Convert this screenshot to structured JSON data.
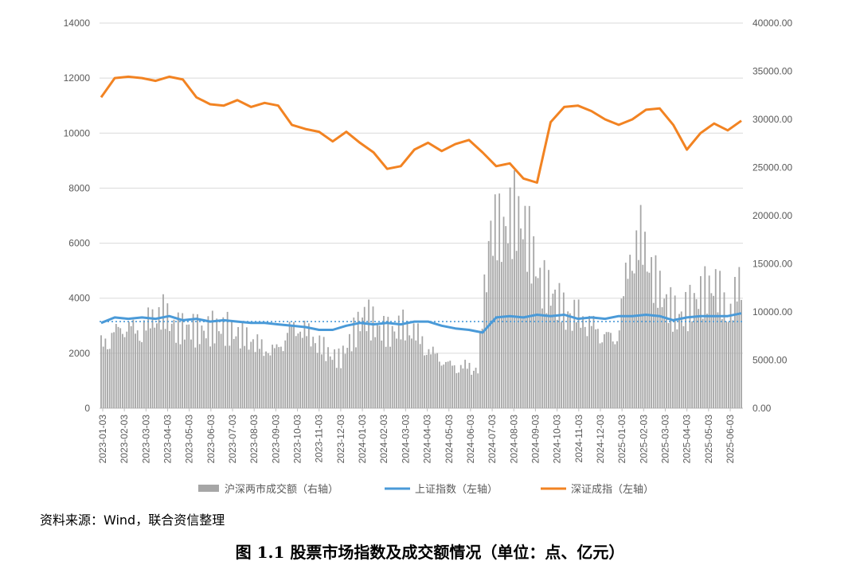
{
  "source_note": "资料来源：Wind，联合资信整理",
  "caption": "图 1.1    股票市场指数及成交额情况（单位：点、亿元）",
  "colors": {
    "volume": "#a6a6a6",
    "shanghai": "#4a9ad8",
    "shenzhen": "#f28322",
    "dotted_ref": "#4a9ad8",
    "axis": "#bfbfbf",
    "grid": "#d9d9d9",
    "tick_text": "#595959"
  },
  "chart_data": {
    "type": "bar+line",
    "grid": true,
    "legend_position": "bottom",
    "left_axis": {
      "ticks": [
        "0",
        "2000",
        "4000",
        "6000",
        "8000",
        "10000",
        "12000",
        "14000"
      ],
      "range": [
        0,
        14000
      ]
    },
    "right_axis": {
      "ticks": [
        "0.00",
        "5000.00",
        "10000.00",
        "15000.00",
        "20000.00",
        "25000.00",
        "30000.00",
        "35000.00",
        "40000.00"
      ],
      "range": [
        0,
        40000
      ]
    },
    "x_tick_labels": [
      "2023-01-03",
      "2023-02-03",
      "2023-03-03",
      "2023-04-03",
      "2023-05-03",
      "2023-06-03",
      "2023-07-03",
      "2023-08-03",
      "2023-09-03",
      "2023-10-03",
      "2023-11-03",
      "2023-12-03",
      "2024-01-03",
      "2024-02-03",
      "2024-03-03",
      "2024-04-03",
      "2024-05-03",
      "2024-06-03",
      "2024-07-03",
      "2024-08-03",
      "2024-09-03",
      "2024-10-03",
      "2024-11-03",
      "2024-12-03",
      "2025-01-03",
      "2025-02-03",
      "2025-03-03",
      "2025-04-03",
      "2025-05-03",
      "2025-06-03"
    ],
    "legend": [
      {
        "label": "沪深两市成交额（右轴）",
        "type": "bar"
      },
      {
        "label": "上证指数（左轴）",
        "type": "line"
      },
      {
        "label": "深证成指（左轴）",
        "type": "line"
      }
    ],
    "reference_line": {
      "axis": "left",
      "value": 3150,
      "style": "dotted"
    },
    "series": [
      {
        "name": "深证成指（左轴）",
        "axis": "left",
        "values": [
          11300,
          12000,
          12050,
          12000,
          11900,
          12050,
          11950,
          11300,
          11050,
          11000,
          11200,
          10950,
          11100,
          11000,
          10300,
          10150,
          10050,
          9700,
          10050,
          9650,
          9300,
          8700,
          8800,
          9400,
          9650,
          9350,
          9600,
          9750,
          9300,
          8800,
          8900,
          8350,
          8200,
          10400,
          10950,
          11000,
          10800,
          10500,
          10300,
          10500,
          10850,
          10900,
          10300,
          9400,
          10000,
          10350,
          10100,
          10450
        ]
      },
      {
        "name": "上证指数（左轴）",
        "axis": "left",
        "values": [
          3100,
          3300,
          3250,
          3300,
          3250,
          3350,
          3200,
          3250,
          3150,
          3200,
          3150,
          3100,
          3100,
          3050,
          3000,
          2950,
          2850,
          2850,
          3000,
          3100,
          3050,
          3100,
          3050,
          3150,
          3150,
          3000,
          2900,
          2850,
          2750,
          3300,
          3350,
          3300,
          3400,
          3350,
          3400,
          3250,
          3300,
          3250,
          3350,
          3350,
          3400,
          3350,
          3200,
          3300,
          3350,
          3350,
          3350,
          3450
        ]
      },
      {
        "name": "沪深两市成交额（右轴）",
        "axis": "right",
        "values": [
          7500,
          9000,
          10000,
          9000,
          10500,
          11000,
          9000,
          9000,
          8500,
          9000,
          9000,
          8500,
          8000,
          7000,
          7000,
          9500,
          9500,
          8000,
          6500,
          5500,
          8000,
          10500,
          9000,
          8500,
          9500,
          9000,
          7000,
          6000,
          5000,
          5000,
          4500,
          21000,
          20000,
          22000,
          19000,
          14000,
          13000,
          11000,
          11000,
          10000,
          9000,
          8000,
          17000,
          20000,
          15000,
          12000,
          10000,
          11500,
          13000,
          14000,
          10500,
          15500
        ]
      }
    ]
  }
}
